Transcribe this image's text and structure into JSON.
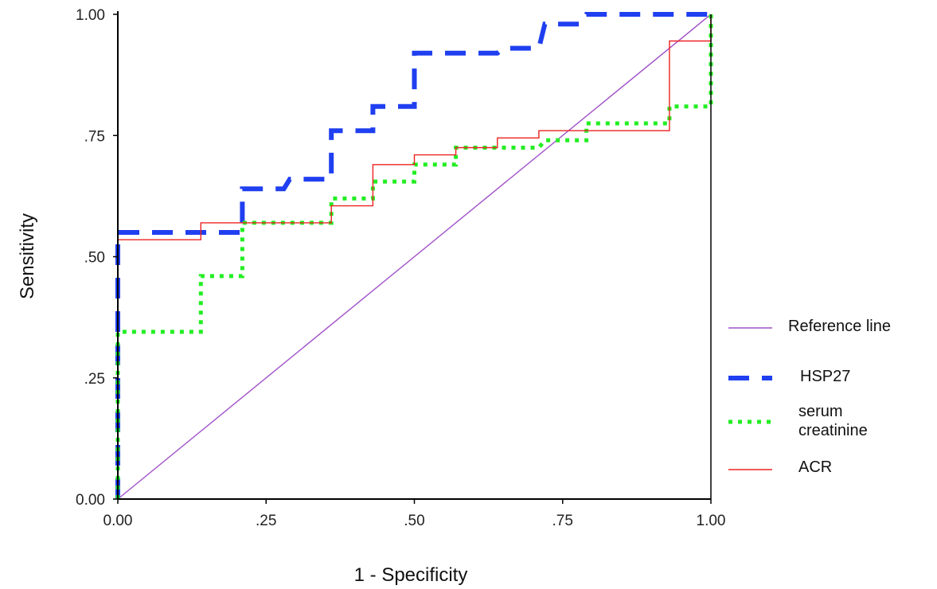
{
  "chart_data": {
    "type": "line",
    "title": "",
    "xlabel": "1 - Specificity",
    "ylabel": "Sensitivity",
    "xlim": [
      0,
      1
    ],
    "ylim": [
      0,
      1
    ],
    "x_ticks": [
      0,
      0.25,
      0.5,
      0.75,
      1
    ],
    "x_tick_labels": [
      "0.00",
      ".25",
      ".50",
      ".75",
      "1.00"
    ],
    "y_ticks": [
      0,
      0.25,
      0.5,
      0.75,
      1
    ],
    "y_tick_labels": [
      "0.00",
      ".25",
      ".50",
      ".75",
      "1.00"
    ],
    "grid": false,
    "legend_position": "right",
    "series": [
      {
        "name": "Reference line",
        "color": "#a050c8",
        "style": "solid-thin",
        "x": [
          0,
          1
        ],
        "y": [
          0,
          1
        ]
      },
      {
        "name": "HSP27",
        "color": "#1f3ff0",
        "style": "dashed-thick",
        "x": [
          0,
          0,
          0.21,
          0.21,
          0.28,
          0.29,
          0.36,
          0.36,
          0.43,
          0.43,
          0.5,
          0.5,
          0.64,
          0.65,
          0.71,
          0.72,
          0.78,
          0.79,
          1
        ],
        "y": [
          0,
          0.55,
          0.55,
          0.64,
          0.64,
          0.66,
          0.66,
          0.76,
          0.76,
          0.81,
          0.81,
          0.92,
          0.92,
          0.93,
          0.93,
          0.98,
          0.98,
          1,
          1
        ]
      },
      {
        "name": "serum creatinine",
        "color": "#22ee22",
        "style": "dotted-thick",
        "x": [
          0,
          0,
          0.14,
          0.14,
          0.21,
          0.21,
          0.36,
          0.36,
          0.43,
          0.43,
          0.5,
          0.5,
          0.57,
          0.57,
          0.71,
          0.72,
          0.79,
          0.79,
          0.93,
          0.93,
          1,
          1
        ],
        "y": [
          0,
          0.345,
          0.345,
          0.46,
          0.46,
          0.57,
          0.57,
          0.62,
          0.62,
          0.655,
          0.655,
          0.69,
          0.69,
          0.725,
          0.725,
          0.74,
          0.74,
          0.775,
          0.775,
          0.81,
          0.81,
          1
        ]
      },
      {
        "name": "ACR",
        "color": "#ee2222",
        "style": "solid-thin",
        "x": [
          0,
          0,
          0.14,
          0.14,
          0.36,
          0.36,
          0.43,
          0.43,
          0.5,
          0.5,
          0.57,
          0.57,
          0.64,
          0.64,
          0.71,
          0.71,
          0.93,
          0.93,
          1,
          1
        ],
        "y": [
          0,
          0.535,
          0.535,
          0.57,
          0.57,
          0.605,
          0.605,
          0.69,
          0.69,
          0.71,
          0.71,
          0.725,
          0.725,
          0.745,
          0.745,
          0.76,
          0.76,
          0.945,
          0.945,
          1
        ]
      }
    ]
  },
  "legend": {
    "items": [
      {
        "label_lines": [
          "Reference line"
        ]
      },
      {
        "label_lines": [
          "HSP27"
        ]
      },
      {
        "label_lines": [
          "serum",
          "creatinine"
        ]
      },
      {
        "label_lines": [
          "ACR"
        ]
      }
    ]
  }
}
